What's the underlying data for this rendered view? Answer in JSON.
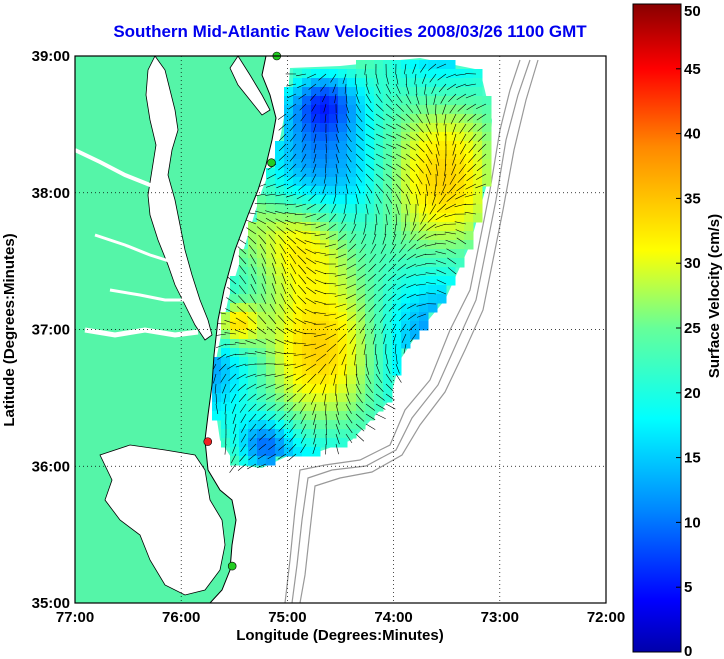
{
  "title": "Southern Mid-Atlantic Raw Velocities 2008/03/26 1100 GMT",
  "map": {
    "xlabel": "Longitude (Degrees:Minutes)",
    "ylabel": "Latitude (Degrees:Minutes)",
    "x_ticks": [
      "77:00",
      "76:00",
      "75:00",
      "74:00",
      "73:00",
      "72:00"
    ],
    "y_ticks": [
      "39:00",
      "38:00",
      "37:00",
      "36:00",
      "35:00"
    ],
    "xlim": [
      -77,
      -72
    ],
    "ylim": [
      35,
      39
    ],
    "grid": true,
    "land_color": "#55f5a8",
    "coast_color": "#000000",
    "bathymetry_color": "#999999"
  },
  "colorbar": {
    "label": "Surface Velocity (cm/s)",
    "range": [
      0,
      50
    ],
    "ticks": [
      "50",
      "45",
      "40",
      "35",
      "30",
      "25",
      "20",
      "15",
      "10",
      "5",
      "0"
    ],
    "colormap": "jet"
  },
  "stations": [
    {
      "name": "station-north",
      "lon": -75.1,
      "lat": 39.0,
      "color": "#22cc22"
    },
    {
      "name": "station-mid",
      "lon": -75.15,
      "lat": 38.22,
      "color": "#22cc22"
    },
    {
      "name": "station-south-red",
      "lon": -75.75,
      "lat": 36.18,
      "color": "#ee2222"
    },
    {
      "name": "station-south-green",
      "lon": -75.52,
      "lat": 35.27,
      "color": "#22cc22"
    }
  ]
}
